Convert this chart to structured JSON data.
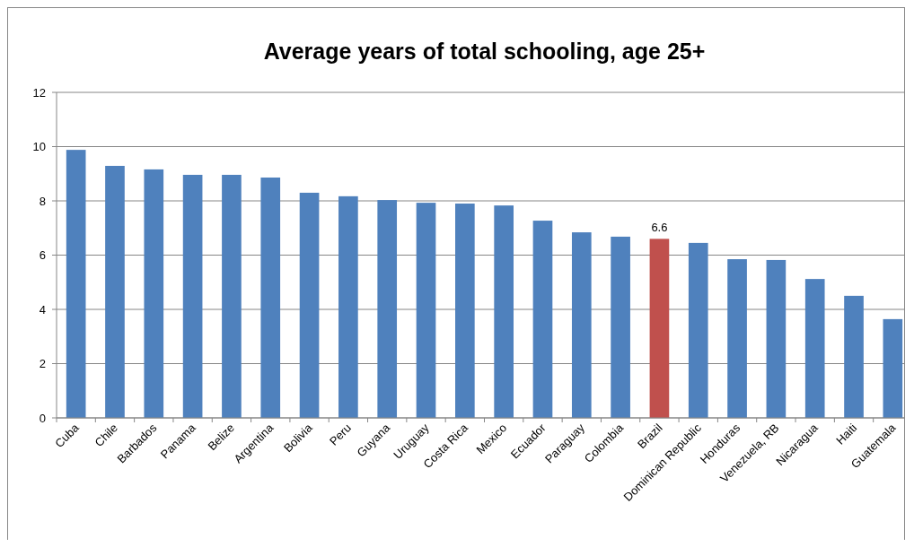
{
  "chart_data": {
    "type": "bar",
    "title": "Average years of total schooling, age 25+",
    "categories": [
      "Cuba",
      "Chile",
      "Barbados",
      "Panama",
      "Belize",
      "Argentina",
      "Bolivia",
      "Peru",
      "Guyana",
      "Uruguay",
      "Costa Rica",
      "Mexico",
      "Ecuador",
      "Paraguay",
      "Colombia",
      "Brazil",
      "Dominican Republic",
      "Honduras",
      "Venezuela, RB",
      "Nicaragua",
      "Haiti",
      "Guatemala"
    ],
    "values": [
      9.88,
      9.29,
      9.16,
      8.96,
      8.96,
      8.86,
      8.3,
      8.17,
      8.03,
      7.93,
      7.9,
      7.83,
      7.27,
      6.84,
      6.68,
      6.6,
      6.45,
      5.85,
      5.82,
      5.12,
      4.5,
      3.64
    ],
    "colors": [
      "#4f81bd",
      "#4f81bd",
      "#4f81bd",
      "#4f81bd",
      "#4f81bd",
      "#4f81bd",
      "#4f81bd",
      "#4f81bd",
      "#4f81bd",
      "#4f81bd",
      "#4f81bd",
      "#4f81bd",
      "#4f81bd",
      "#4f81bd",
      "#4f81bd",
      "#c0504d",
      "#4f81bd",
      "#4f81bd",
      "#4f81bd",
      "#4f81bd",
      "#4f81bd",
      "#4f81bd"
    ],
    "value_labels": [
      null,
      null,
      null,
      null,
      null,
      null,
      null,
      null,
      null,
      null,
      null,
      null,
      null,
      null,
      null,
      "6.6",
      null,
      null,
      null,
      null,
      null,
      null
    ],
    "ylim": [
      0,
      12
    ],
    "yticks": [
      0,
      2,
      4,
      6,
      8,
      10,
      12
    ],
    "grid": "y"
  }
}
